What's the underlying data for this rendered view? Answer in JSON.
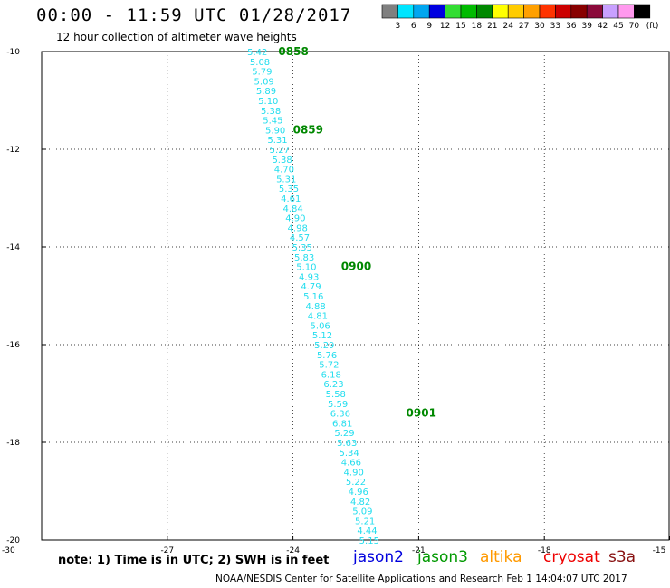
{
  "header": {
    "title": "00:00 - 11:59 UTC 01/28/2017",
    "subtitle": "12 hour collection of altimeter wave heights"
  },
  "colorbar": {
    "unit": "(ft)",
    "labels": [
      "3",
      "6",
      "9",
      "12",
      "15",
      "18",
      "21",
      "24",
      "27",
      "30",
      "33",
      "36",
      "39",
      "42",
      "45",
      "70"
    ],
    "colors": [
      "#808080",
      "#00e5ff",
      "#00a6f0",
      "#0000e0",
      "#33dd33",
      "#00bb00",
      "#008800",
      "#ffff00",
      "#ffcc00",
      "#ffa000",
      "#ff3300",
      "#cc0000",
      "#880000",
      "#8a0a3a",
      "#c8a0ff",
      "#ff99ee",
      "#000000"
    ]
  },
  "chart_data": {
    "type": "scatter",
    "xlim": [
      -30,
      -15
    ],
    "ylim": [
      -20,
      -10
    ],
    "x_ticks": [
      -30,
      -27,
      -24,
      -21,
      -18,
      -15
    ],
    "y_ticks": [
      -10,
      -12,
      -14,
      -16,
      -18,
      -20
    ],
    "x_tick_labels": [
      "-30",
      "-27",
      "-24",
      "-21",
      "-18",
      "-15"
    ],
    "y_tick_labels": [
      "-10",
      "-12",
      "-14",
      "-16",
      "-18",
      "-20"
    ],
    "grid": true,
    "series": [
      {
        "name": "jason3",
        "color": "#22ddee",
        "points": [
          {
            "x": -24.85,
            "y": -10.0,
            "label": "5.42"
          },
          {
            "x": -24.79,
            "y": -10.2,
            "label": "5.08"
          },
          {
            "x": -24.74,
            "y": -10.4,
            "label": "5.79"
          },
          {
            "x": -24.69,
            "y": -10.6,
            "label": "5.09"
          },
          {
            "x": -24.64,
            "y": -10.8,
            "label": "5.89"
          },
          {
            "x": -24.59,
            "y": -11.0,
            "label": "5.10"
          },
          {
            "x": -24.53,
            "y": -11.2,
            "label": "5.38"
          },
          {
            "x": -24.48,
            "y": -11.4,
            "label": "5.45"
          },
          {
            "x": -24.42,
            "y": -11.6,
            "label": "5.90"
          },
          {
            "x": -24.37,
            "y": -11.8,
            "label": "5.31"
          },
          {
            "x": -24.32,
            "y": -12.0,
            "label": "5.27"
          },
          {
            "x": -24.26,
            "y": -12.2,
            "label": "5.38"
          },
          {
            "x": -24.21,
            "y": -12.4,
            "label": "4.70"
          },
          {
            "x": -24.16,
            "y": -12.6,
            "label": "5.31"
          },
          {
            "x": -24.1,
            "y": -12.8,
            "label": "5.35"
          },
          {
            "x": -24.05,
            "y": -13.0,
            "label": "4.61"
          },
          {
            "x": -24.0,
            "y": -13.2,
            "label": "4.84"
          },
          {
            "x": -23.94,
            "y": -13.4,
            "label": "4.90"
          },
          {
            "x": -23.89,
            "y": -13.6,
            "label": "4.98"
          },
          {
            "x": -23.84,
            "y": -13.8,
            "label": "4.57"
          },
          {
            "x": -23.78,
            "y": -14.0,
            "label": "5.35"
          },
          {
            "x": -23.73,
            "y": -14.2,
            "label": "5.83"
          },
          {
            "x": -23.68,
            "y": -14.4,
            "label": "5.10"
          },
          {
            "x": -23.62,
            "y": -14.6,
            "label": "4.93"
          },
          {
            "x": -23.57,
            "y": -14.8,
            "label": "4.79"
          },
          {
            "x": -23.51,
            "y": -15.0,
            "label": "5.16"
          },
          {
            "x": -23.46,
            "y": -15.2,
            "label": "4.88"
          },
          {
            "x": -23.41,
            "y": -15.4,
            "label": "4.81"
          },
          {
            "x": -23.35,
            "y": -15.6,
            "label": "5.06"
          },
          {
            "x": -23.3,
            "y": -15.8,
            "label": "5.12"
          },
          {
            "x": -23.25,
            "y": -16.0,
            "label": "5.29"
          },
          {
            "x": -23.19,
            "y": -16.2,
            "label": "5.76"
          },
          {
            "x": -23.14,
            "y": -16.4,
            "label": "5.72"
          },
          {
            "x": -23.09,
            "y": -16.6,
            "label": "6.18"
          },
          {
            "x": -23.03,
            "y": -16.8,
            "label": "6.23"
          },
          {
            "x": -22.98,
            "y": -17.0,
            "label": "5.58"
          },
          {
            "x": -22.93,
            "y": -17.2,
            "label": "5.59"
          },
          {
            "x": -22.87,
            "y": -17.4,
            "label": "6.36"
          },
          {
            "x": -22.82,
            "y": -17.6,
            "label": "6.81"
          },
          {
            "x": -22.77,
            "y": -17.8,
            "label": "5.29"
          },
          {
            "x": -22.71,
            "y": -18.0,
            "label": "5.63"
          },
          {
            "x": -22.66,
            "y": -18.2,
            "label": "5.34"
          },
          {
            "x": -22.61,
            "y": -18.4,
            "label": "4.66"
          },
          {
            "x": -22.55,
            "y": -18.6,
            "label": "4.90"
          },
          {
            "x": -22.5,
            "y": -18.8,
            "label": "5.22"
          },
          {
            "x": -22.44,
            "y": -19.0,
            "label": "4.96"
          },
          {
            "x": -22.39,
            "y": -19.2,
            "label": "4.82"
          },
          {
            "x": -22.34,
            "y": -19.4,
            "label": "5.09"
          },
          {
            "x": -22.28,
            "y": -19.6,
            "label": "5.21"
          },
          {
            "x": -22.23,
            "y": -19.8,
            "label": "4.44"
          },
          {
            "x": -22.18,
            "y": -20.0,
            "label": "5.15"
          }
        ]
      }
    ],
    "annotations": [
      {
        "text": "0858",
        "x": -24.35,
        "y": -10.0,
        "color": "#008800"
      },
      {
        "text": "0859",
        "x": -24.0,
        "y": -11.6,
        "color": "#008800"
      },
      {
        "text": "0900",
        "x": -22.85,
        "y": -14.4,
        "color": "#008800"
      },
      {
        "text": "0901",
        "x": -21.3,
        "y": -17.4,
        "color": "#008800"
      }
    ]
  },
  "footer": {
    "note": "note: 1) Time is in UTC; 2) SWH is in feet",
    "satellites": [
      {
        "name": "jason2",
        "color": "#0000dd"
      },
      {
        "name": "jason3",
        "color": "#009900"
      },
      {
        "name": "altika",
        "color": "#ff9900"
      },
      {
        "name": "cryosat",
        "color": "#ee0000"
      },
      {
        "name": "s3a",
        "color": "#881111"
      }
    ],
    "credit": "NOAA/NESDIS Center for Satellite Applications and Research    Feb  1 14:04:07 UTC 2017"
  }
}
